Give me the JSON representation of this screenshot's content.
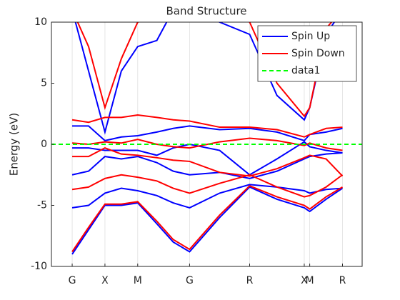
{
  "chart_data": {
    "type": "line",
    "title": "Band Structure",
    "y_label": "Energy (eV)",
    "x": [
      0,
      0.3,
      0.6,
      0.9,
      1.2,
      1.55,
      1.85,
      2.15,
      2.7,
      3.25,
      3.75,
      4.25,
      4.35,
      4.65,
      4.95
    ],
    "xlim": [
      -0.38,
      5.31
    ],
    "xticks": [
      {
        "value": 0,
        "label": "G"
      },
      {
        "value": 0.6,
        "label": "X"
      },
      {
        "value": 1.2,
        "label": "M"
      },
      {
        "value": 2.15,
        "label": "G"
      },
      {
        "value": 3.25,
        "label": "R"
      },
      {
        "value": 4.25,
        "label": "X"
      },
      {
        "value": 4.35,
        "label": "M"
      },
      {
        "value": 4.95,
        "label": "R"
      }
    ],
    "ylim": [
      -10,
      10
    ],
    "yticks": [
      -10,
      -5,
      0,
      5,
      10
    ],
    "xgrid": true,
    "legend": "top-right",
    "series": [
      {
        "name": "Spin Up",
        "color": "#0000ff",
        "bands": [
          [
            -9,
            -7,
            -5,
            -5,
            -4.8,
            -6.5,
            -8,
            -8.8,
            -6,
            -3.5,
            -4.5,
            -5.2,
            -5.5,
            -4.5,
            -3.6
          ],
          [
            -5.2,
            -5,
            -4,
            -3.6,
            -3.8,
            -4.2,
            -4.8,
            -5.2,
            -4,
            -3.3,
            -3.5,
            -3.8,
            -4,
            -3.7,
            -3.6
          ],
          [
            -2.5,
            -2.2,
            -1,
            -1.2,
            -1,
            -1.5,
            -2.2,
            -2.5,
            -2.3,
            -2.8,
            -2.2,
            -1.2,
            -1,
            -0.8,
            -0.7
          ],
          [
            -0.3,
            -0.3,
            -0.5,
            -0.5,
            -0.5,
            -0.9,
            -0.3,
            0,
            -0.5,
            -2.5,
            -1.2,
            0.2,
            -0.2,
            -0.5,
            -0.7
          ],
          [
            1.5,
            1.5,
            0.3,
            0.6,
            0.7,
            1,
            1.3,
            1.5,
            1.2,
            1.3,
            1,
            0.3,
            0.8,
            1,
            1.3
          ],
          [
            11,
            6,
            1,
            6,
            8,
            8.5,
            11,
            11,
            10,
            9,
            4,
            2,
            3,
            9,
            11
          ]
        ]
      },
      {
        "name": "Spin Down",
        "color": "#ff0000",
        "bands": [
          [
            -8.8,
            -6.8,
            -4.9,
            -4.9,
            -4.7,
            -6.3,
            -7.8,
            -8.6,
            -5.8,
            -3.4,
            -4.3,
            -5,
            -5.3,
            -4.3,
            -3.5
          ],
          [
            -3.7,
            -3.5,
            -2.8,
            -2.5,
            -2.7,
            -3,
            -3.6,
            -4,
            -3.2,
            -2.5,
            -3.5,
            -4.3,
            -4.2,
            -3.5,
            -2.5
          ],
          [
            -1,
            -1,
            -0.3,
            -0.8,
            -0.9,
            -1.1,
            -1.3,
            -1.4,
            -2.3,
            -2.6,
            -2,
            -1.1,
            -0.9,
            -1.2,
            -2.6
          ],
          [
            0.1,
            0,
            0.2,
            0.1,
            0.4,
            0,
            -0.2,
            -0.3,
            0.2,
            0.5,
            0.3,
            -0.1,
            0.1,
            -0.3,
            -0.5
          ],
          [
            2,
            1.8,
            2.2,
            2.2,
            2.4,
            2.2,
            2,
            1.9,
            1.4,
            1.4,
            1.2,
            0.6,
            0.8,
            1.3,
            1.4
          ],
          [
            11,
            8,
            3,
            7,
            10,
            10.5,
            11,
            11,
            11,
            10,
            5,
            2.3,
            3,
            9.5,
            11
          ]
        ]
      },
      {
        "name": "data1",
        "color": "#00ff00",
        "dashed": true,
        "x": [
          -0.38,
          5.31
        ],
        "values": [
          0,
          0
        ]
      }
    ]
  }
}
